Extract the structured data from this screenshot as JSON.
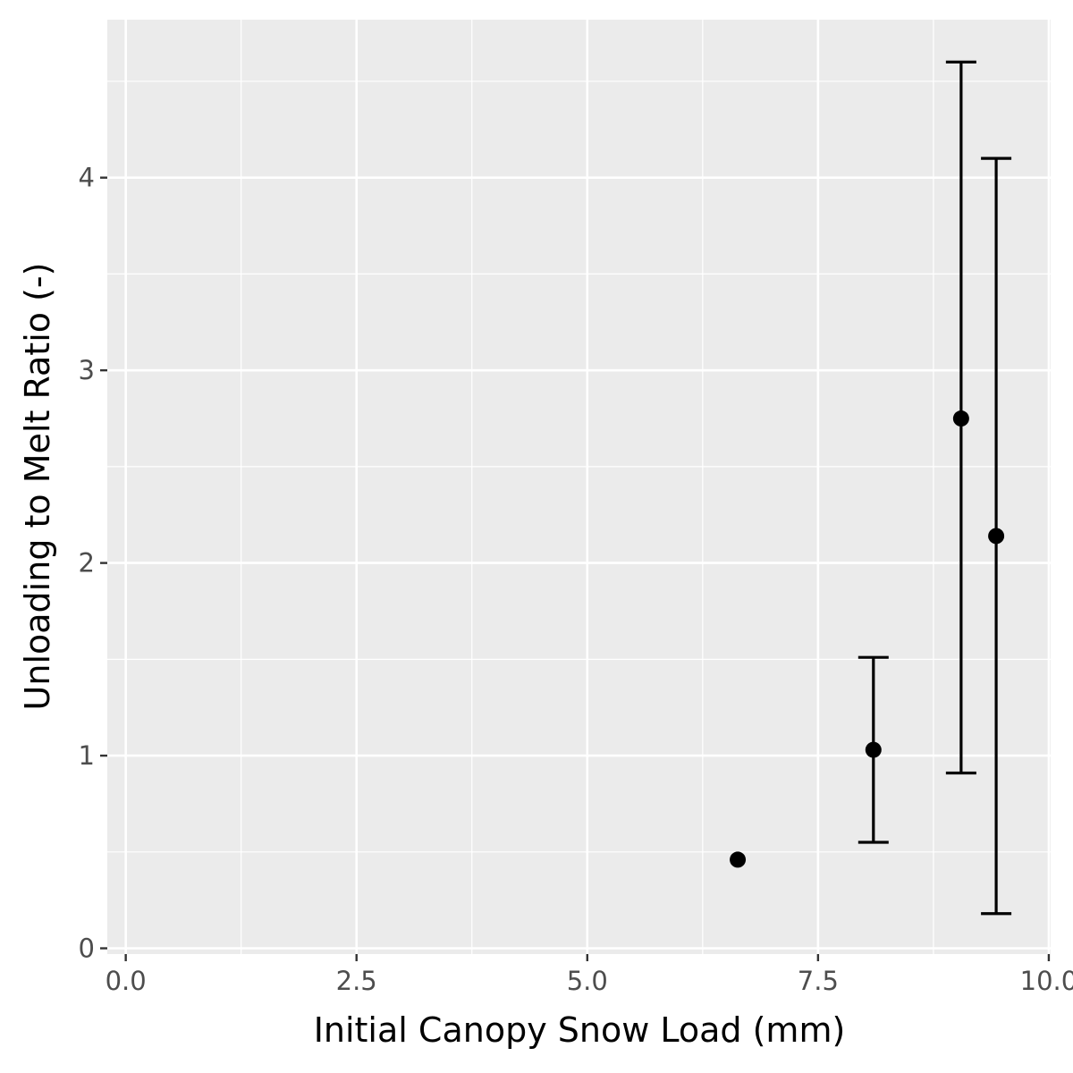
{
  "chart_data": {
    "type": "scatter",
    "xlabel": "Initial Canopy Snow Load (mm)",
    "ylabel": "Unloading to Melt Ratio (-)",
    "xlim": [
      -0.2,
      10.02
    ],
    "ylim": [
      -0.03,
      4.82
    ],
    "x_ticks": [
      0.0,
      2.5,
      5.0,
      7.5,
      10.0
    ],
    "x_tick_labels": [
      "0.0",
      "2.5",
      "5.0",
      "7.5",
      "10.0"
    ],
    "y_ticks": [
      0,
      1,
      2,
      3,
      4
    ],
    "y_tick_labels": [
      "0",
      "1",
      "2",
      "3",
      "4"
    ],
    "grid": true,
    "panel_background": "#ebebeb",
    "gridline_color": "#ffffff",
    "point_color": "#000000",
    "points": [
      {
        "x": 6.63,
        "y": 0.46,
        "ymin": null,
        "ymax": null
      },
      {
        "x": 8.1,
        "y": 1.03,
        "ymin": 0.55,
        "ymax": 1.51
      },
      {
        "x": 9.05,
        "y": 2.75,
        "ymin": 0.91,
        "ymax": 4.6
      },
      {
        "x": 9.43,
        "y": 2.14,
        "ymin": 0.18,
        "ymax": 4.1
      }
    ]
  }
}
